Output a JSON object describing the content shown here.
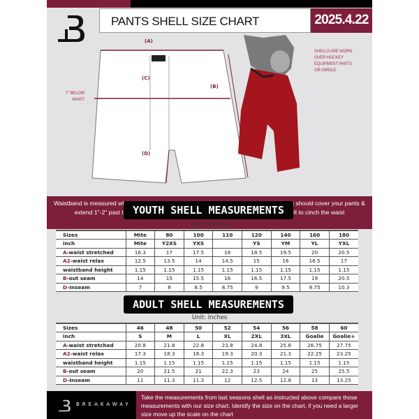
{
  "header": {
    "title": "PANTS SHELL SIZE CHART",
    "date": "2025.4.22"
  },
  "diagram": {
    "label_a": "(A)",
    "label_b": "(B)",
    "label_c": "(C)",
    "label_d": "(D)",
    "below_waist": "7\" BELOW WAIST",
    "worn_note": "SHELLS ARE WORN OVER HOCKEY EQUIPMENT PANTS OR GIRDLE"
  },
  "banner": "Waistband is measured when laid flat - not your total waist circumference. The leg opening should cover your pants & extend 1\"-2\" past the bottom of your pant/girdle. Shell comes with an adjustable belt to cinch the waist",
  "colors": {
    "accent": "#7d1f3a",
    "dark": "#000000",
    "background": "#e3e3e5"
  },
  "youth": {
    "title": "YOUTH SHELL MEASUREMENTS",
    "unit": "Unit: Inches",
    "rows": [
      {
        "prefix": "",
        "label": "Sizes",
        "values": [
          "Mite",
          "80",
          "100",
          "110",
          "120",
          "140",
          "160",
          "180"
        ]
      },
      {
        "prefix": "",
        "label": "inch",
        "values": [
          "Mite",
          "Y2XS",
          "YXS",
          "",
          "YS",
          "YM",
          "YL",
          "YXL"
        ]
      },
      {
        "prefix": "A",
        "label": "-waist stretched",
        "values": [
          "16.3",
          "17",
          "17.5",
          "18",
          "18.5",
          "19.5",
          "20",
          "20.5"
        ]
      },
      {
        "prefix": "A2",
        "label": "-waist relax",
        "values": [
          "12.5",
          "13.5",
          "14",
          "14.5",
          "15",
          "16",
          "16.5",
          "17"
        ]
      },
      {
        "prefix": "",
        "label": "waistband height",
        "values": [
          "1.15",
          "1.15",
          "1.15",
          "1.15",
          "1.15",
          "1.15",
          "1.15",
          "1.15"
        ]
      },
      {
        "prefix": "B",
        "label": "-out seam",
        "values": [
          "14",
          "15",
          "15.5",
          "16",
          "16.5",
          "17.5",
          "19",
          "20.5"
        ]
      },
      {
        "prefix": "D",
        "label": "-Inseam",
        "values": [
          "7",
          "8",
          "8.5",
          "8.75",
          "9",
          "9.5",
          "9.75",
          "10.3"
        ]
      }
    ]
  },
  "adult": {
    "title": "ADULT SHELL MEASUREMENTS",
    "unit": "Unit: Inches",
    "rows": [
      {
        "prefix": "",
        "label": "Sizes",
        "values": [
          "46",
          "48",
          "50",
          "52",
          "54",
          "56",
          "58",
          "60"
        ]
      },
      {
        "prefix": "",
        "label": "inch",
        "values": [
          "S",
          "M",
          "L",
          "XL",
          "2XL",
          "3XL",
          "Goalie",
          "Goalie+"
        ]
      },
      {
        "prefix": "A",
        "label": "-waist stretched",
        "values": [
          "20.8",
          "21.8",
          "22.8",
          "23.8",
          "24.8",
          "25.8",
          "26.75",
          "27.75"
        ]
      },
      {
        "prefix": "A2",
        "label": "-waist relax",
        "values": [
          "17.3",
          "18.3",
          "18.3",
          "19.3",
          "20.3",
          "21.3",
          "22.25",
          "23.25"
        ]
      },
      {
        "prefix": "",
        "label": "waistband height",
        "values": [
          "1.15",
          "1.15",
          "1.15",
          "1.15",
          "1.15",
          "1.15",
          "1.15",
          "1.15"
        ]
      },
      {
        "prefix": "B",
        "label": "-out seam",
        "values": [
          "20",
          "21.5",
          "21",
          "22.3",
          "23",
          "24",
          "25",
          "25.5"
        ]
      },
      {
        "prefix": "D",
        "label": "-Inseam",
        "values": [
          "11",
          "11.3",
          "11.3",
          "12",
          "12.5",
          "12.8",
          "13",
          "13.25"
        ]
      }
    ]
  },
  "footer": {
    "brand": "BREAKAWAY",
    "instructions": "Take the measurements from last seasons shell as instructed above compare those measurements  with our size chart. Identify the size on the chart, if you need a larger size move up the scale on the chart"
  }
}
